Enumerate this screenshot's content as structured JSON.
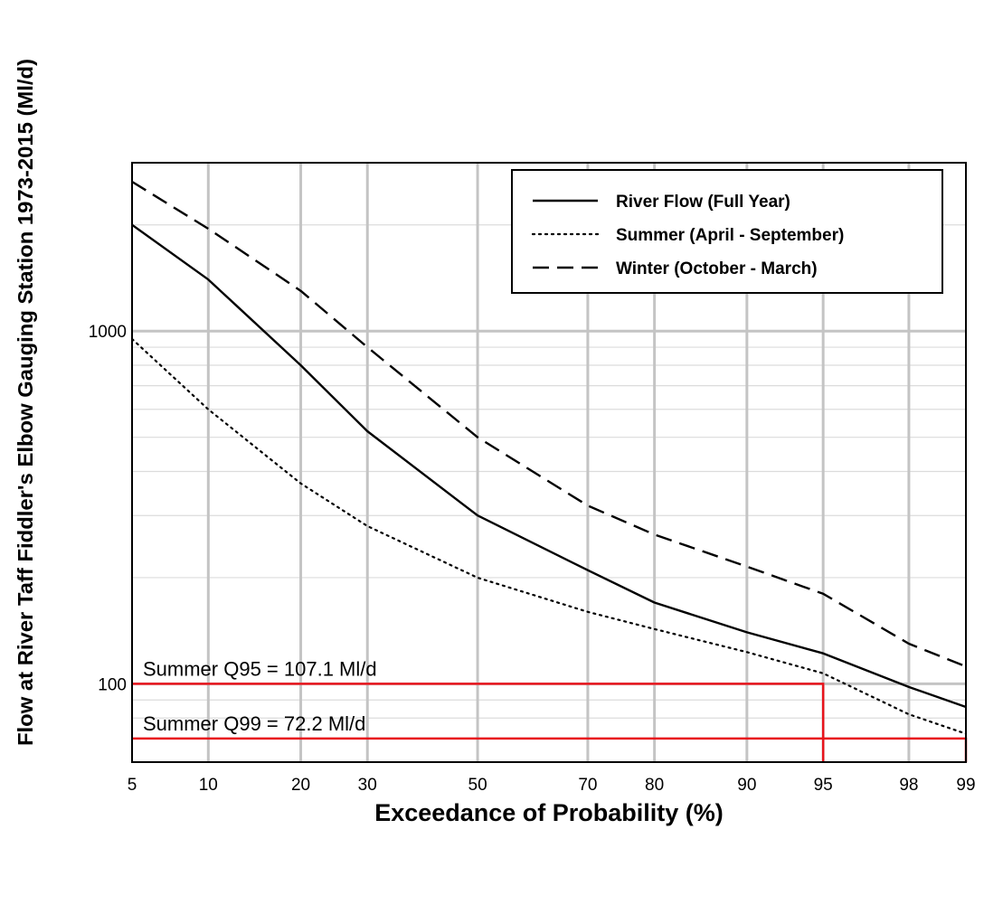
{
  "chart_data": {
    "type": "line",
    "xlabel": "Exceedance of Probability (%)",
    "ylabel": "Flow at River Taff Fiddler's Elbow Gauging Station 1973-2015 (Ml/d)",
    "x_scale": "normal-probability",
    "y_scale": "log",
    "xlim": [
      5,
      99
    ],
    "ylim": [
      60,
      3000
    ],
    "x_ticks": [
      5,
      10,
      20,
      30,
      50,
      70,
      80,
      90,
      95,
      98,
      99
    ],
    "x_tick_labels": [
      "5",
      "10",
      "20",
      "30",
      "50",
      "70",
      "80",
      "90",
      "95",
      "98",
      "99"
    ],
    "y_tick_labels": [
      {
        "value": 100,
        "label": "100"
      },
      {
        "value": 1000,
        "label": "1000"
      }
    ],
    "grid": true,
    "legend_position": "top-right",
    "series": [
      {
        "name": "River Flow (Full Year)",
        "style": "solid",
        "x": [
          5,
          10,
          20,
          30,
          50,
          70,
          80,
          90,
          95,
          98,
          99
        ],
        "y": [
          2000,
          1400,
          800,
          520,
          300,
          210,
          170,
          140,
          122,
          98,
          86
        ]
      },
      {
        "name": "Summer (April - September)",
        "style": "dotted",
        "x": [
          5,
          10,
          20,
          30,
          50,
          70,
          80,
          90,
          95,
          98,
          99
        ],
        "y": [
          950,
          600,
          370,
          280,
          200,
          160,
          143,
          123,
          107.1,
          82,
          72.2
        ]
      },
      {
        "name": "Winter (October - March)",
        "style": "dashed",
        "x": [
          5,
          10,
          20,
          30,
          50,
          70,
          80,
          90,
          95,
          98,
          99
        ],
        "y": [
          2650,
          1950,
          1300,
          900,
          500,
          320,
          265,
          215,
          180,
          130,
          112
        ]
      }
    ],
    "annotations": [
      {
        "label": "Summer Q95 = 107.1 Ml/d",
        "x": 95,
        "y": 100,
        "color": "#e8141c"
      },
      {
        "label": "Summer Q99 = 72.2 Ml/d",
        "x": 99,
        "y": 70,
        "color": "#e8141c"
      }
    ],
    "colors": {
      "series": "#000000",
      "grid_major": "#c4c4c4",
      "grid_minor": "#dcdcdc",
      "annotation": "#e8141c"
    }
  }
}
